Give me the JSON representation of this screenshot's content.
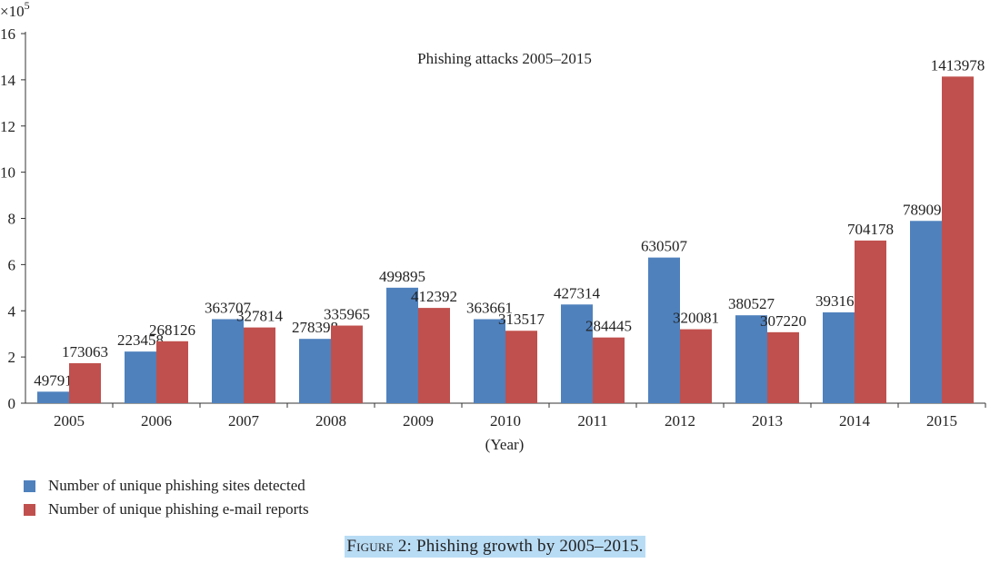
{
  "colors": {
    "sites": "#4f81bd",
    "emails": "#c0504d",
    "axis": "#333333",
    "caption_bg": "#b9dcf5"
  },
  "chart_data": {
    "type": "bar",
    "title": "Phishing attacks 2005–2015",
    "xlabel": "(Year)",
    "ylabel": "",
    "y_multiplier_label": "×10",
    "y_multiplier_exponent": "5",
    "ylim": [
      0,
      1600000
    ],
    "y_ticks": [
      0,
      200000,
      400000,
      600000,
      800000,
      1000000,
      1200000,
      1400000,
      1600000
    ],
    "y_tick_labels": [
      "0",
      "2",
      "4",
      "6",
      "8",
      "10",
      "12",
      "14",
      "16"
    ],
    "categories": [
      "2005",
      "2006",
      "2007",
      "2008",
      "2009",
      "2010",
      "2011",
      "2012",
      "2013",
      "2014",
      "2015"
    ],
    "series": [
      {
        "name": "Number of unique phishing sites detected",
        "values": [
          49791,
          223458,
          363707,
          278398,
          499895,
          363661,
          427314,
          630507,
          380527,
          393160,
          789098
        ]
      },
      {
        "name": "Number of unique phishing e-mail reports",
        "values": [
          173063,
          268126,
          327814,
          335965,
          412392,
          313517,
          284445,
          320081,
          307220,
          704178,
          1413978
        ]
      }
    ],
    "legend_placement": "bottom-left",
    "grid": false
  },
  "caption": {
    "label": "Figure 2",
    "text": ": Phishing growth by 2005–2015",
    "end": "."
  }
}
